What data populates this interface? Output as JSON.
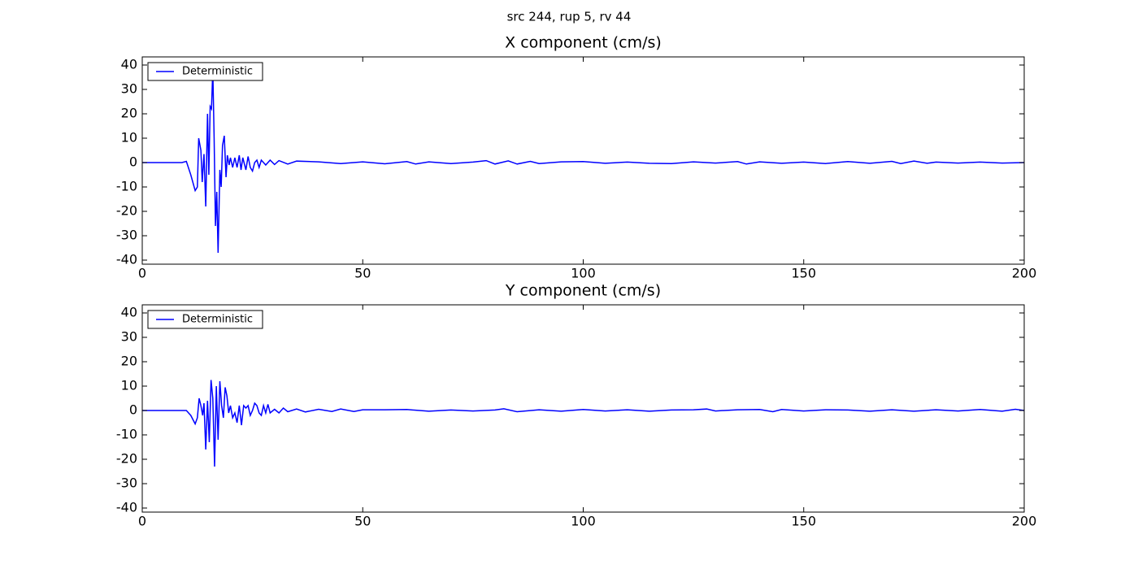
{
  "title": "src 244, rup 5, rv 44",
  "chart_data": [
    {
      "type": "line",
      "title": "X component (cm/s)",
      "x": [
        0,
        9,
        10,
        11,
        12,
        12.5,
        12.8,
        13.3,
        13.6,
        14,
        14.4,
        14.8,
        15.1,
        15.4,
        15.7,
        16,
        16.3,
        16.6,
        16.9,
        17.2,
        17.6,
        17.9,
        18.2,
        18.6,
        19,
        19.3,
        19.7,
        20,
        20.5,
        21,
        21.5,
        22,
        22.4,
        22.8,
        23.5,
        24,
        24.5,
        25,
        25.5,
        26,
        26.5,
        27,
        28,
        29,
        30,
        31,
        33,
        35,
        40,
        45,
        50,
        55,
        60,
        62,
        65,
        70,
        75,
        78,
        80,
        83,
        85,
        88,
        90,
        95,
        100,
        105,
        110,
        115,
        120,
        125,
        130,
        135,
        137,
        140,
        145,
        150,
        155,
        160,
        165,
        170,
        172,
        175,
        178,
        180,
        185,
        190,
        195,
        200
      ],
      "series": [
        {
          "name": "Deterministic",
          "color": "#0000ff",
          "values": [
            0,
            0,
            0.5,
            -5,
            -11.5,
            -10,
            10,
            5,
            -8,
            3.5,
            -18,
            20,
            -5,
            23,
            22,
            38,
            10,
            -26,
            -12,
            -37,
            -3,
            -10,
            7,
            11,
            -6,
            3,
            -1,
            2,
            -2,
            2,
            -2,
            3,
            -3,
            2,
            -3,
            2.5,
            -2,
            -3.5,
            0,
            1,
            -2,
            1,
            -1,
            1,
            -0.8,
            0.8,
            -0.6,
            0.6,
            0.3,
            -0.4,
            0.3,
            -0.5,
            0.4,
            -0.6,
            0.3,
            -0.4,
            0.2,
            0.8,
            -0.6,
            0.7,
            -0.6,
            0.5,
            -0.4,
            0.3,
            0.4,
            -0.3,
            0.2,
            -0.3,
            -0.4,
            0.3,
            -0.2,
            0.4,
            -0.6,
            0.3,
            -0.3,
            0.2,
            -0.4,
            0.4,
            -0.3,
            0.5,
            -0.4,
            0.6,
            -0.3,
            0.2,
            -0.2,
            0.2,
            -0.2,
            0
          ]
        }
      ],
      "xlim": [
        0,
        200
      ],
      "ylim": [
        -41.67,
        43.33
      ],
      "xticks": [
        0,
        50,
        100,
        150,
        200
      ],
      "yticks": [
        -40,
        -30,
        -20,
        -10,
        0,
        10,
        20,
        30,
        40
      ],
      "legend": "upper left"
    },
    {
      "type": "line",
      "title": "Y component (cm/s)",
      "x": [
        0,
        10,
        11,
        12,
        12.5,
        12.9,
        13.3,
        13.7,
        14,
        14.4,
        14.8,
        15.2,
        15.6,
        16,
        16.4,
        16.8,
        17.2,
        17.6,
        18,
        18.4,
        18.8,
        19.2,
        19.6,
        20,
        20.5,
        21,
        21.5,
        22,
        22.5,
        23,
        23.5,
        24,
        24.5,
        25,
        25.5,
        26,
        26.5,
        27,
        27.5,
        28,
        28.5,
        29,
        30,
        31,
        32,
        33,
        35,
        37,
        40,
        43,
        45,
        48,
        50,
        55,
        60,
        65,
        70,
        75,
        80,
        82,
        85,
        90,
        95,
        100,
        105,
        110,
        115,
        120,
        125,
        128,
        130,
        135,
        140,
        143,
        145,
        150,
        155,
        160,
        165,
        170,
        175,
        180,
        185,
        190,
        195,
        198,
        200
      ],
      "series": [
        {
          "name": "Deterministic",
          "color": "#0000ff",
          "values": [
            0,
            0,
            -2,
            -5.5,
            -3,
            5,
            2,
            -2,
            3,
            -16,
            4,
            -13,
            12.5,
            5,
            -23,
            10,
            -12,
            12,
            2,
            -3,
            9.5,
            6,
            -1,
            2,
            -3,
            -1,
            -5,
            2,
            -6,
            2,
            1,
            2,
            -2,
            0,
            3,
            2,
            -1,
            -2,
            2,
            -1,
            2.5,
            -1,
            0.5,
            -1,
            1,
            -0.5,
            0.6,
            -0.6,
            0.5,
            -0.4,
            0.6,
            -0.4,
            0.3,
            0.3,
            0.4,
            -0.3,
            0.2,
            -0.2,
            0.2,
            0.7,
            -0.5,
            0.3,
            -0.3,
            0.4,
            -0.2,
            0.3,
            -0.3,
            0.2,
            0.3,
            0.6,
            -0.2,
            0.3,
            0.4,
            -0.5,
            0.4,
            -0.2,
            0.3,
            0.2,
            -0.3,
            0.3,
            -0.3,
            0.3,
            -0.2,
            0.4,
            -0.3,
            0.5,
            0
          ]
        }
      ],
      "xlim": [
        0,
        200
      ],
      "ylim": [
        -41.67,
        43.33
      ],
      "xticks": [
        0,
        50,
        100,
        150,
        200
      ],
      "yticks": [
        -40,
        -30,
        -20,
        -10,
        0,
        10,
        20,
        30,
        40
      ],
      "legend": "upper left"
    }
  ]
}
